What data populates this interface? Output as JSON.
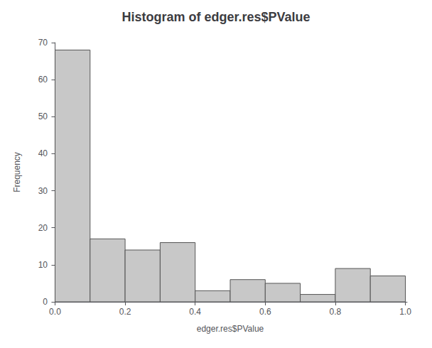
{
  "chart_data": {
    "type": "histogram",
    "title": "Histogram of edger.res$PValue",
    "xlabel": "edger.res$PValue",
    "ylabel": "Frequency",
    "bins": [
      0.0,
      0.1,
      0.2,
      0.3,
      0.4,
      0.5,
      0.6,
      0.7,
      0.8,
      0.9,
      1.0
    ],
    "values": [
      68,
      17,
      14,
      16,
      3,
      6,
      5,
      2,
      9,
      7
    ],
    "color": "#c8c8c8",
    "xlim": [
      -0.005,
      1.005
    ],
    "xticks": [
      {
        "value": 0.0,
        "label": "0.0"
      },
      0.2,
      0.4,
      0.6,
      0.8,
      {
        "value": 1.0,
        "label": "1.0"
      }
    ],
    "ylim": [
      0,
      70
    ],
    "yticks": [
      0,
      10,
      20,
      30,
      40,
      50,
      60,
      70
    ],
    "grid": false
  }
}
